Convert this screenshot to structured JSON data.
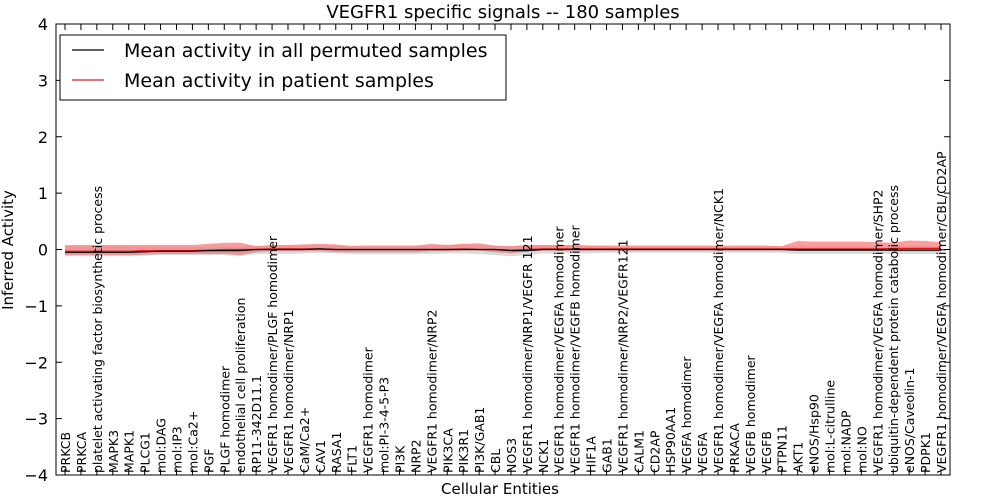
{
  "chart_data": {
    "type": "line",
    "title": "VEGFR1 specific signals -- 180 samples",
    "xlabel": "Cellular Entities",
    "ylabel": "Inferred Activity",
    "ylim": [
      -4,
      4
    ],
    "yticks": [
      "−4",
      "−3",
      "−2",
      "−1",
      "0",
      "1",
      "2",
      "3",
      "4"
    ],
    "ytick_values": [
      -4,
      -3,
      -2,
      -1,
      0,
      1,
      2,
      3,
      4
    ],
    "grid": false,
    "legend_position": "top-left",
    "colors": {
      "permuted": "#000000",
      "patient": "#e8141a",
      "permuted_band": "#cccccc",
      "patient_band": "#f08080"
    },
    "categories": [
      "PRKCB",
      "PRKCA",
      "platelet activating factor biosynthetic process",
      "MAPK3",
      "MAPK1",
      "PLCG1",
      "mol:DAG",
      "mol:IP3",
      "mol:Ca2+",
      "PGF",
      "PLGF homodimer",
      "endothelial cell proliferation",
      "RP11-342D11.1",
      "VEGFR1 homodimer/PLGF homodimer",
      "VEGFR1 homodimer/NRP1",
      "CaM/Ca2+",
      "CAV1",
      "RASA1",
      "FLT1",
      "VEGFR1 homodimer",
      "mol:PI-3-4-5-P3",
      "PI3K",
      "NRP2",
      "VEGFR1 homodimer/NRP2",
      "PIK3CA",
      "PIK3R1",
      "PI3K/GAB1",
      "CBL",
      "NOS3",
      "VEGFR1 homodimer/NRP1/VEGFR 121",
      "NCK1",
      "VEGFR1 homodimer/VEGFA homodimer",
      "VEGFR1 homodimer/VEGFB homodimer",
      "HIF1A",
      "GAB1",
      "VEGFR1 homodimer/NRP2/VEGFR121",
      "CALM1",
      "CD2AP",
      "HSP90AA1",
      "VEGFA homodimer",
      "VEGFA",
      "VEGFR1 homodimer/VEGFA homodimer/NCK1",
      "PRKACA",
      "VEGFB homodimer",
      "VEGFB",
      "PTPN11",
      "AKT1",
      "eNOS/Hsp90",
      "mol:L-citrulline",
      "mol:NADP",
      "mol:NO",
      "VEGFR1 homodimer/VEGFA homodimer/SHP2",
      "ubiquitin-dependent protein catabolic process",
      "eNOS/Caveolin-1",
      "PDPK1",
      "VEGFR1 homodimer/VEGFA homodimer/CBL/CD2AP"
    ],
    "series": [
      {
        "name": "Mean activity in all permuted samples",
        "color": "#000000",
        "values": [
          -0.05,
          -0.05,
          -0.05,
          -0.05,
          -0.05,
          -0.04,
          -0.03,
          -0.03,
          -0.03,
          -0.02,
          -0.02,
          -0.02,
          0.0,
          0.0,
          0.0,
          0.0,
          0.01,
          0.0,
          0.0,
          0.0,
          0.0,
          0.0,
          0.0,
          0.0,
          0.0,
          0.0,
          0.0,
          0.0,
          -0.02,
          -0.02,
          0.0,
          0.0,
          0.0,
          0.0,
          0.0,
          0.0,
          0.0,
          0.0,
          0.0,
          0.0,
          0.0,
          0.0,
          0.0,
          0.0,
          0.0,
          0.0,
          -0.01,
          -0.01,
          -0.01,
          -0.01,
          -0.01,
          -0.01,
          -0.01,
          -0.01,
          -0.01,
          -0.01
        ],
        "lower": [
          -0.12,
          -0.12,
          -0.12,
          -0.12,
          -0.12,
          -0.11,
          -0.1,
          -0.1,
          -0.1,
          -0.1,
          -0.1,
          -0.12,
          -0.08,
          -0.08,
          -0.08,
          -0.07,
          -0.06,
          -0.07,
          -0.08,
          -0.08,
          -0.08,
          -0.08,
          -0.08,
          -0.08,
          -0.07,
          -0.07,
          -0.08,
          -0.1,
          -0.12,
          -0.1,
          -0.07,
          -0.07,
          -0.07,
          -0.07,
          -0.06,
          -0.06,
          -0.06,
          -0.06,
          -0.06,
          -0.06,
          -0.06,
          -0.06,
          -0.06,
          -0.06,
          -0.06,
          -0.06,
          -0.08,
          -0.08,
          -0.08,
          -0.08,
          -0.08,
          -0.08,
          -0.08,
          -0.08,
          -0.08,
          -0.08
        ],
        "upper": [
          0.06,
          0.06,
          0.06,
          0.06,
          0.06,
          0.05,
          0.05,
          0.05,
          0.05,
          0.05,
          0.05,
          0.06,
          0.07,
          0.07,
          0.07,
          0.07,
          0.08,
          0.07,
          0.07,
          0.07,
          0.07,
          0.07,
          0.07,
          0.07,
          0.08,
          0.09,
          0.08,
          0.06,
          0.06,
          0.07,
          0.08,
          0.08,
          0.08,
          0.07,
          0.07,
          0.07,
          0.06,
          0.06,
          0.06,
          0.06,
          0.06,
          0.06,
          0.06,
          0.06,
          0.06,
          0.06,
          0.06,
          0.06,
          0.06,
          0.06,
          0.06,
          0.06,
          0.06,
          0.06,
          0.06,
          0.06
        ]
      },
      {
        "name": "Mean activity in patient samples",
        "color": "#e8141a",
        "values": [
          -0.03,
          -0.03,
          -0.03,
          -0.03,
          -0.03,
          -0.02,
          -0.02,
          -0.02,
          -0.02,
          -0.01,
          0.0,
          0.0,
          0.0,
          0.01,
          0.01,
          0.01,
          0.01,
          0.0,
          0.0,
          0.0,
          0.0,
          0.0,
          0.0,
          0.0,
          0.0,
          0.01,
          0.0,
          0.0,
          -0.01,
          0.0,
          0.01,
          0.01,
          0.01,
          0.01,
          0.01,
          0.01,
          0.01,
          0.01,
          0.01,
          0.01,
          0.01,
          0.01,
          0.01,
          0.01,
          0.01,
          0.01,
          0.01,
          0.01,
          0.01,
          0.01,
          0.01,
          0.01,
          0.02,
          0.02,
          0.02,
          0.02
        ],
        "lower": [
          -0.1,
          -0.1,
          -0.1,
          -0.1,
          -0.1,
          -0.09,
          -0.08,
          -0.08,
          -0.08,
          -0.08,
          -0.08,
          -0.1,
          -0.05,
          -0.03,
          -0.03,
          -0.03,
          -0.03,
          -0.05,
          -0.05,
          -0.05,
          -0.05,
          -0.05,
          -0.05,
          -0.03,
          -0.03,
          -0.02,
          -0.02,
          -0.05,
          -0.07,
          -0.04,
          -0.02,
          -0.02,
          -0.02,
          -0.02,
          -0.02,
          -0.02,
          -0.02,
          -0.02,
          -0.02,
          -0.02,
          -0.02,
          -0.02,
          -0.02,
          -0.02,
          -0.02,
          -0.02,
          -0.02,
          -0.02,
          -0.02,
          -0.02,
          -0.02,
          -0.02,
          -0.03,
          -0.03,
          -0.03,
          -0.03
        ],
        "upper": [
          0.08,
          0.08,
          0.08,
          0.08,
          0.08,
          0.08,
          0.08,
          0.08,
          0.08,
          0.1,
          0.12,
          0.12,
          0.06,
          0.08,
          0.08,
          0.09,
          0.1,
          0.09,
          0.06,
          0.07,
          0.07,
          0.07,
          0.07,
          0.1,
          0.08,
          0.1,
          0.11,
          0.07,
          0.06,
          0.08,
          0.08,
          0.08,
          0.08,
          0.07,
          0.07,
          0.07,
          0.07,
          0.07,
          0.07,
          0.07,
          0.07,
          0.07,
          0.07,
          0.07,
          0.07,
          0.06,
          0.15,
          0.14,
          0.14,
          0.14,
          0.14,
          0.13,
          0.12,
          0.16,
          0.15,
          0.13
        ]
      }
    ]
  }
}
